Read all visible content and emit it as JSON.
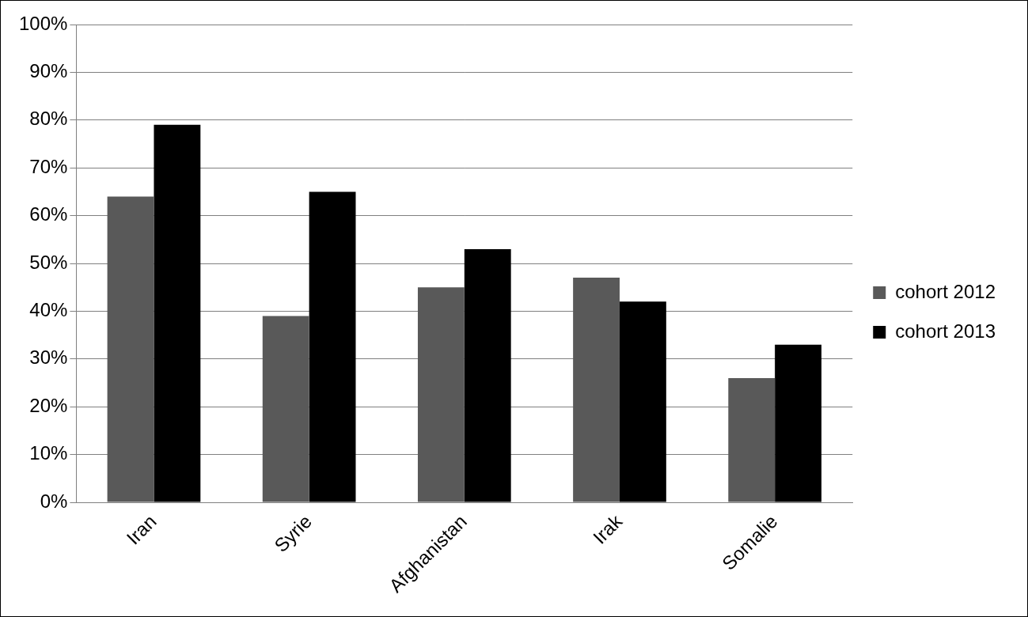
{
  "chart_data": {
    "type": "bar",
    "categories": [
      "Iran",
      "Syrie",
      "Afghanistan",
      "Irak",
      "Somalie"
    ],
    "series": [
      {
        "name": "cohort 2012",
        "color": "#595959",
        "values": [
          64,
          39,
          45,
          47,
          26
        ]
      },
      {
        "name": "cohort 2013",
        "color": "#000000",
        "values": [
          79,
          65,
          53,
          42,
          33
        ]
      }
    ],
    "ylim": [
      0,
      100
    ],
    "yticks": [
      {
        "value": 0,
        "label": "0%"
      },
      {
        "value": 10,
        "label": "10%"
      },
      {
        "value": 20,
        "label": "20%"
      },
      {
        "value": 30,
        "label": "30%"
      },
      {
        "value": 40,
        "label": "40%"
      },
      {
        "value": 50,
        "label": "50%"
      },
      {
        "value": 60,
        "label": "60%"
      },
      {
        "value": 70,
        "label": "70%"
      },
      {
        "value": 80,
        "label": "80%"
      },
      {
        "value": 90,
        "label": "90%"
      },
      {
        "value": 100,
        "label": "100%"
      }
    ],
    "grid": true,
    "legend": "right"
  }
}
